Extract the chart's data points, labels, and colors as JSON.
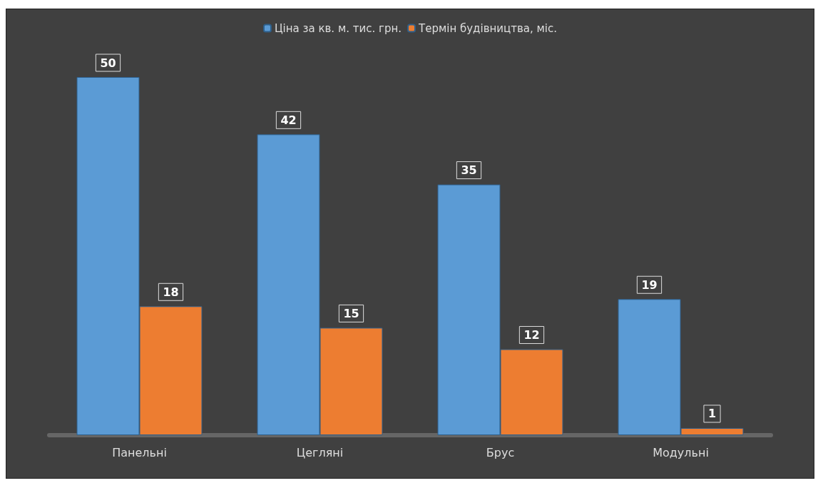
{
  "chart_data": {
    "type": "bar",
    "categories": [
      "Панельні",
      "Цегляні",
      "Брус",
      "Модульні"
    ],
    "series": [
      {
        "name": "Ціна за кв. м. тис. грн.",
        "color": "#5b9bd5",
        "values": [
          50,
          42,
          35,
          19
        ]
      },
      {
        "name": "Термін будівництва, міс.",
        "color": "#ed7d31",
        "values": [
          18,
          15,
          12,
          1
        ]
      }
    ],
    "data_labels": true,
    "legend": "top"
  }
}
